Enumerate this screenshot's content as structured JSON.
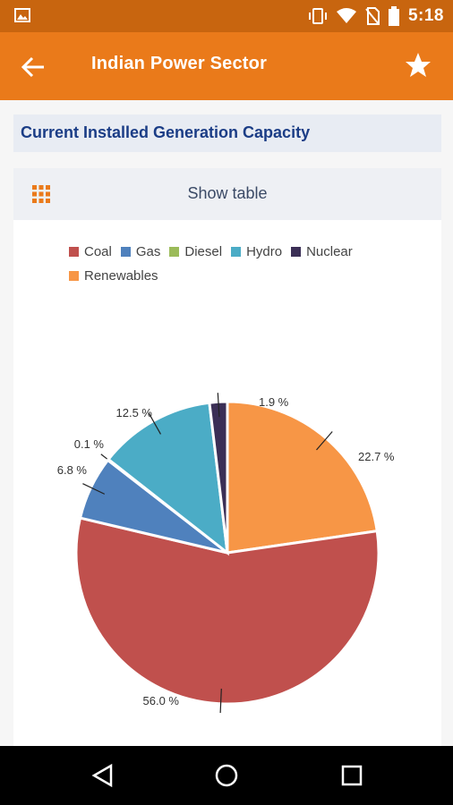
{
  "status_bar": {
    "time": "5:18",
    "icons": [
      "image-icon",
      "vibrate-icon",
      "wifi-icon",
      "no-sim-icon",
      "battery-icon"
    ]
  },
  "app_bar": {
    "title": "Indian Power Sector",
    "back_icon": "back-arrow-icon",
    "star_icon": "star-icon"
  },
  "section": {
    "title": "Current Installed Generation Capacity"
  },
  "show_table": {
    "label": "Show table",
    "icon": "grid-icon"
  },
  "chart_data": {
    "type": "pie",
    "categories": [
      "Coal",
      "Gas",
      "Diesel",
      "Hydro",
      "Nuclear",
      "Renewables"
    ],
    "values": [
      56.0,
      6.8,
      0.1,
      12.5,
      1.9,
      22.7
    ],
    "labels": [
      "56.0 %",
      "6.8 %",
      "0.1 %",
      "12.5 %",
      "1.9 %",
      "22.7 %"
    ],
    "colors": [
      "#c0504d",
      "#4f81bd",
      "#9bbb59",
      "#4bacc6",
      "#3b2f56",
      "#f79646"
    ],
    "legend": "top-left"
  },
  "nav_bar": {
    "buttons": [
      "back-triangle-icon",
      "home-circle-icon",
      "recents-square-icon"
    ]
  }
}
